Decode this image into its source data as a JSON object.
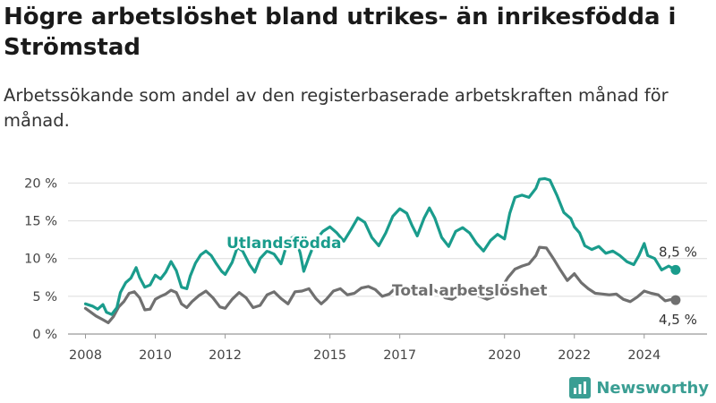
{
  "title": "Högre arbetslöshet bland utrikes- än inrikesfödda i Strömstad",
  "subtitle": "Arbetssökande som andel av den registerbaserade arbetskraften månad för månad.",
  "brand": {
    "name": "Newsworthy",
    "color": "#3a9e93",
    "icon": "bar-chart-logo-icon"
  },
  "chart_data": {
    "type": "line",
    "ylim": [
      0,
      21
    ],
    "yticks": [
      0,
      5,
      10,
      15,
      20
    ],
    "ytick_labels": [
      "0 %",
      "5 %",
      "10 %",
      "15 %",
      "20 %"
    ],
    "xlim": [
      2007.5,
      2025.8
    ],
    "xticks": [
      2008,
      2010,
      2012,
      2015,
      2017,
      2020,
      2022,
      2024
    ],
    "xtick_labels": [
      "2008",
      "2010",
      "2012",
      "2015",
      "2017",
      "2020",
      "2022",
      "2024"
    ],
    "grid": "horizontal",
    "series": [
      {
        "name": "Utlandsfödda",
        "color": "#1a9c8c",
        "end_label": "8,5 %",
        "points": [
          [
            2008.0,
            4.0
          ],
          [
            2008.2,
            3.7
          ],
          [
            2008.35,
            3.3
          ],
          [
            2008.5,
            3.9
          ],
          [
            2008.6,
            2.9
          ],
          [
            2008.75,
            2.6
          ],
          [
            2008.9,
            3.5
          ],
          [
            2009.0,
            5.5
          ],
          [
            2009.15,
            6.8
          ],
          [
            2009.3,
            7.4
          ],
          [
            2009.45,
            8.8
          ],
          [
            2009.55,
            7.5
          ],
          [
            2009.7,
            6.2
          ],
          [
            2009.85,
            6.5
          ],
          [
            2010.0,
            7.8
          ],
          [
            2010.15,
            7.3
          ],
          [
            2010.3,
            8.2
          ],
          [
            2010.45,
            9.6
          ],
          [
            2010.6,
            8.4
          ],
          [
            2010.75,
            6.2
          ],
          [
            2010.9,
            6.0
          ],
          [
            2011.0,
            7.7
          ],
          [
            2011.15,
            9.4
          ],
          [
            2011.3,
            10.5
          ],
          [
            2011.45,
            11.0
          ],
          [
            2011.6,
            10.4
          ],
          [
            2011.75,
            9.3
          ],
          [
            2011.9,
            8.3
          ],
          [
            2012.0,
            7.9
          ],
          [
            2012.2,
            9.5
          ],
          [
            2012.35,
            11.5
          ],
          [
            2012.5,
            11.0
          ],
          [
            2012.7,
            9.2
          ],
          [
            2012.85,
            8.2
          ],
          [
            2013.0,
            10.0
          ],
          [
            2013.2,
            11.0
          ],
          [
            2013.4,
            10.6
          ],
          [
            2013.6,
            9.3
          ],
          [
            2013.8,
            12.4
          ],
          [
            2014.0,
            13.0
          ],
          [
            2014.15,
            10.7
          ],
          [
            2014.25,
            8.3
          ],
          [
            2014.4,
            10.2
          ],
          [
            2014.6,
            12.5
          ],
          [
            2014.8,
            13.6
          ],
          [
            2015.0,
            14.2
          ],
          [
            2015.2,
            13.4
          ],
          [
            2015.4,
            12.3
          ],
          [
            2015.6,
            13.8
          ],
          [
            2015.8,
            15.4
          ],
          [
            2016.0,
            14.8
          ],
          [
            2016.2,
            12.8
          ],
          [
            2016.4,
            11.7
          ],
          [
            2016.6,
            13.4
          ],
          [
            2016.8,
            15.6
          ],
          [
            2017.0,
            16.6
          ],
          [
            2017.2,
            16.0
          ],
          [
            2017.35,
            14.4
          ],
          [
            2017.5,
            13.0
          ],
          [
            2017.7,
            15.4
          ],
          [
            2017.85,
            16.7
          ],
          [
            2018.0,
            15.4
          ],
          [
            2018.2,
            12.8
          ],
          [
            2018.4,
            11.6
          ],
          [
            2018.6,
            13.6
          ],
          [
            2018.8,
            14.1
          ],
          [
            2019.0,
            13.4
          ],
          [
            2019.2,
            12.0
          ],
          [
            2019.4,
            11.0
          ],
          [
            2019.6,
            12.4
          ],
          [
            2019.8,
            13.2
          ],
          [
            2020.0,
            12.6
          ],
          [
            2020.15,
            16.0
          ],
          [
            2020.3,
            18.1
          ],
          [
            2020.5,
            18.4
          ],
          [
            2020.7,
            18.1
          ],
          [
            2020.9,
            19.3
          ],
          [
            2021.0,
            20.5
          ],
          [
            2021.15,
            20.6
          ],
          [
            2021.3,
            20.4
          ],
          [
            2021.5,
            18.4
          ],
          [
            2021.7,
            16.1
          ],
          [
            2021.9,
            15.3
          ],
          [
            2022.0,
            14.2
          ],
          [
            2022.15,
            13.4
          ],
          [
            2022.3,
            11.7
          ],
          [
            2022.5,
            11.2
          ],
          [
            2022.7,
            11.6
          ],
          [
            2022.9,
            10.7
          ],
          [
            2023.1,
            11.0
          ],
          [
            2023.3,
            10.4
          ],
          [
            2023.5,
            9.6
          ],
          [
            2023.7,
            9.2
          ],
          [
            2023.85,
            10.4
          ],
          [
            2024.0,
            12.0
          ],
          [
            2024.1,
            10.4
          ],
          [
            2024.3,
            10.0
          ],
          [
            2024.5,
            8.5
          ],
          [
            2024.7,
            9.0
          ],
          [
            2024.9,
            8.5
          ]
        ]
      },
      {
        "name": "Total arbetslöshet",
        "color": "#707070",
        "end_label": "4,5 %",
        "points": [
          [
            2008.0,
            3.4
          ],
          [
            2008.15,
            2.9
          ],
          [
            2008.3,
            2.4
          ],
          [
            2008.5,
            1.9
          ],
          [
            2008.65,
            1.5
          ],
          [
            2008.8,
            2.3
          ],
          [
            2008.95,
            3.6
          ],
          [
            2009.1,
            4.3
          ],
          [
            2009.25,
            5.4
          ],
          [
            2009.4,
            5.6
          ],
          [
            2009.55,
            4.8
          ],
          [
            2009.7,
            3.2
          ],
          [
            2009.85,
            3.3
          ],
          [
            2010.0,
            4.6
          ],
          [
            2010.15,
            5.0
          ],
          [
            2010.3,
            5.3
          ],
          [
            2010.45,
            5.8
          ],
          [
            2010.6,
            5.5
          ],
          [
            2010.75,
            4.0
          ],
          [
            2010.9,
            3.5
          ],
          [
            2011.05,
            4.3
          ],
          [
            2011.25,
            5.1
          ],
          [
            2011.45,
            5.7
          ],
          [
            2011.65,
            4.8
          ],
          [
            2011.85,
            3.6
          ],
          [
            2012.0,
            3.4
          ],
          [
            2012.2,
            4.6
          ],
          [
            2012.4,
            5.5
          ],
          [
            2012.6,
            4.8
          ],
          [
            2012.8,
            3.5
          ],
          [
            2013.0,
            3.8
          ],
          [
            2013.2,
            5.2
          ],
          [
            2013.4,
            5.6
          ],
          [
            2013.6,
            4.7
          ],
          [
            2013.8,
            4.0
          ],
          [
            2014.0,
            5.6
          ],
          [
            2014.2,
            5.7
          ],
          [
            2014.4,
            6.0
          ],
          [
            2014.6,
            4.7
          ],
          [
            2014.75,
            4.0
          ],
          [
            2014.9,
            4.6
          ],
          [
            2015.1,
            5.7
          ],
          [
            2015.3,
            6.0
          ],
          [
            2015.5,
            5.2
          ],
          [
            2015.7,
            5.4
          ],
          [
            2015.9,
            6.1
          ],
          [
            2016.1,
            6.3
          ],
          [
            2016.3,
            5.9
          ],
          [
            2016.5,
            5.0
          ],
          [
            2016.7,
            5.3
          ],
          [
            2016.9,
            6.2
          ],
          [
            2017.1,
            6.4
          ],
          [
            2017.3,
            5.8
          ],
          [
            2017.5,
            5.0
          ],
          [
            2017.7,
            5.6
          ],
          [
            2017.9,
            6.1
          ],
          [
            2018.1,
            5.5
          ],
          [
            2018.3,
            4.8
          ],
          [
            2018.5,
            4.6
          ],
          [
            2018.7,
            5.2
          ],
          [
            2018.9,
            5.6
          ],
          [
            2019.1,
            5.3
          ],
          [
            2019.3,
            5.0
          ],
          [
            2019.5,
            4.6
          ],
          [
            2019.7,
            5.0
          ],
          [
            2019.9,
            6.0
          ],
          [
            2020.1,
            7.5
          ],
          [
            2020.3,
            8.6
          ],
          [
            2020.5,
            9.0
          ],
          [
            2020.7,
            9.3
          ],
          [
            2020.9,
            10.4
          ],
          [
            2021.0,
            11.5
          ],
          [
            2021.2,
            11.4
          ],
          [
            2021.4,
            10.0
          ],
          [
            2021.6,
            8.5
          ],
          [
            2021.8,
            7.1
          ],
          [
            2022.0,
            8.0
          ],
          [
            2022.2,
            6.8
          ],
          [
            2022.4,
            6.0
          ],
          [
            2022.6,
            5.4
          ],
          [
            2022.8,
            5.3
          ],
          [
            2023.0,
            5.2
          ],
          [
            2023.2,
            5.3
          ],
          [
            2023.4,
            4.6
          ],
          [
            2023.6,
            4.3
          ],
          [
            2023.8,
            4.9
          ],
          [
            2024.0,
            5.7
          ],
          [
            2024.2,
            5.4
          ],
          [
            2024.4,
            5.2
          ],
          [
            2024.6,
            4.4
          ],
          [
            2024.8,
            4.6
          ],
          [
            2024.9,
            4.5
          ]
        ]
      }
    ]
  }
}
